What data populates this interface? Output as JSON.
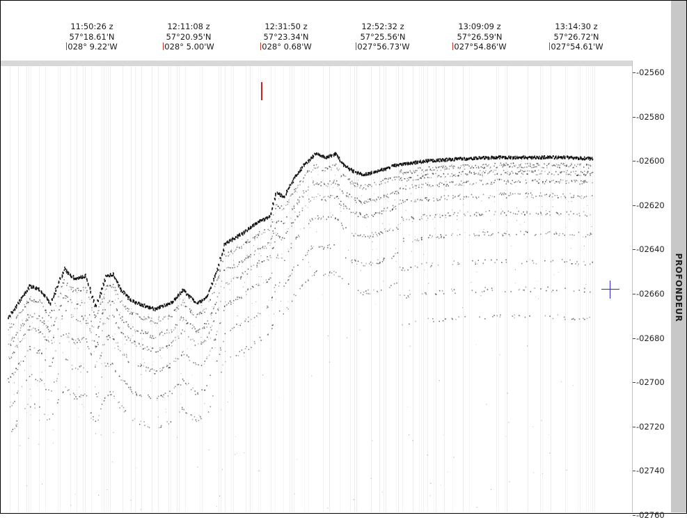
{
  "fixes": [
    {
      "time": "11:50:26 z",
      "lat": "57°18.61'N",
      "lon": "028° 9.22'W"
    },
    {
      "time": "12:11:08 z",
      "lat": "57°20.95'N",
      "lon": "028° 5.00'W"
    },
    {
      "time": "12:31:50 z",
      "lat": "57°23.34'N",
      "lon": "028° 0.68'W"
    },
    {
      "time": "12:52:32 z",
      "lat": "57°25.56'N",
      "lon": "027°56.73'W"
    },
    {
      "time": "13:09:09 z",
      "lat": "57°26.59'N",
      "lon": "027°54.86'W"
    },
    {
      "time": "13:14:30 z",
      "lat": "57°26.72'N",
      "lon": "027°54.61'W"
    }
  ],
  "depth_axis": {
    "title": "PROFONDEUR",
    "ticks": [
      "-02560",
      "-02580",
      "-02600",
      "-02620",
      "-02640",
      "-02660",
      "-02680",
      "-02700",
      "-02720",
      "-02740",
      "-02760"
    ]
  },
  "colors": {
    "echo": "#000000",
    "background": "#ffffff",
    "cursor": "#2b2bd0",
    "event_marker": "#cc2222",
    "panel": "#c8c8c8"
  },
  "icons": {
    "cursor": "crosshair-icon"
  }
}
